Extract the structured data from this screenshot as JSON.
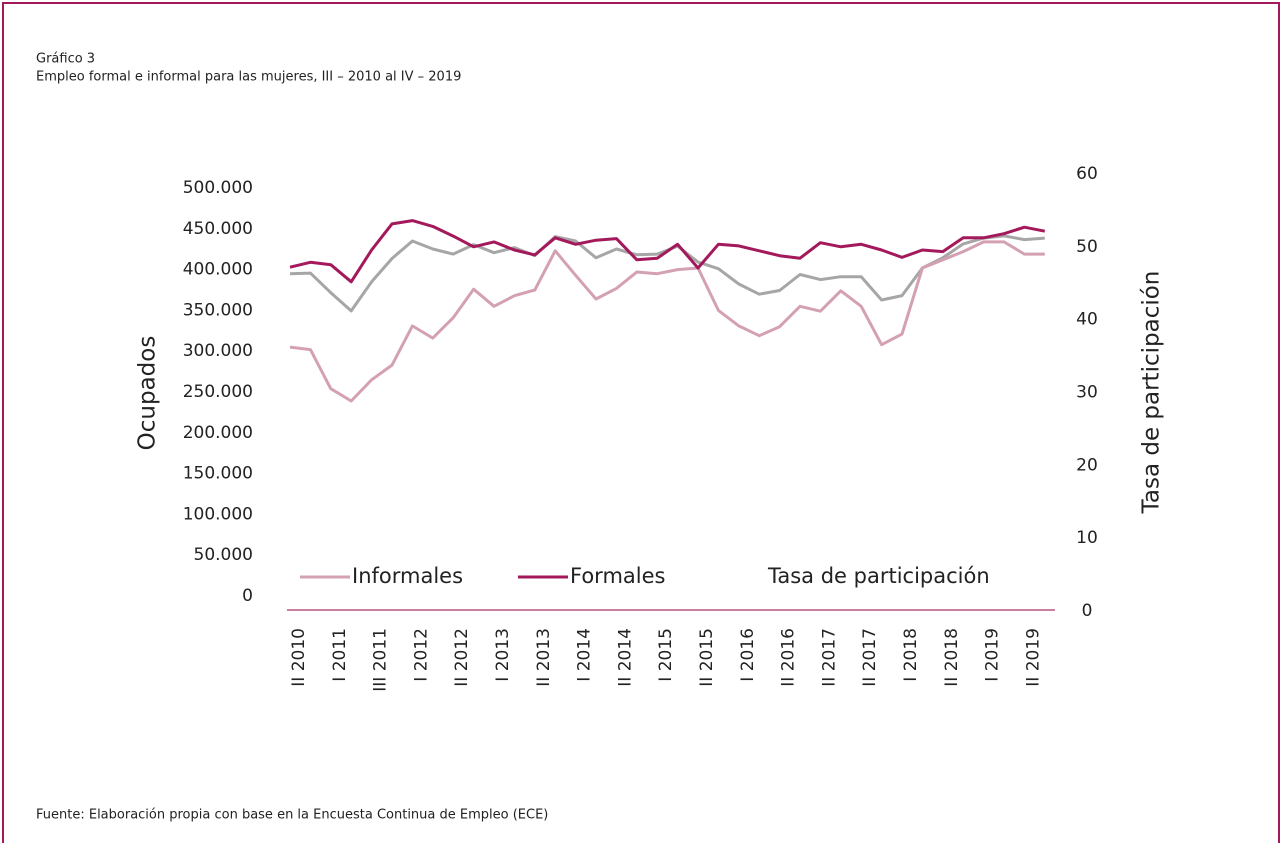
{
  "chart_data": {
    "type": "line",
    "label": "Gráfico 3",
    "title": "Empleo formal e informal para las mujeres, III – 2010 al IV – 2019",
    "source": "Fuente: Elaboración propia con base en la Encuesta Continua de Empleo (ECE)",
    "ylabel": "Ocupados",
    "y2label": "Tasa de participación",
    "categories": [
      "II 2010",
      null,
      "I 2011",
      null,
      "III 2011",
      null,
      "I 2012",
      null,
      "II 2012",
      null,
      "I 2013",
      null,
      "II 2013",
      null,
      "I 2014",
      null,
      "II 2014",
      null,
      "I 2015",
      null,
      "II 2015",
      null,
      "I 2016",
      null,
      "II 2016",
      null,
      "II 2017",
      null,
      "II 2017",
      null,
      "I 2018",
      null,
      "II 2018",
      null,
      "I 2019",
      null,
      "II 2019",
      null
    ],
    "series": [
      {
        "name": "Informales",
        "color": "#d4a0b4",
        "values": [
          305000,
          302000,
          254000,
          239000,
          265000,
          283000,
          331000,
          316000,
          341000,
          376000,
          355000,
          368000,
          375000,
          423000,
          393000,
          364000,
          377000,
          397000,
          395000,
          400000,
          402000,
          350000,
          331000,
          319000,
          330000,
          355000,
          349000,
          374000,
          355000,
          308000,
          321000,
          402000,
          412000,
          422000,
          434000,
          434000,
          419000,
          419000
        ]
      },
      {
        "name": "Formales",
        "color": "#a3195b",
        "values": [
          403000,
          409000,
          406000,
          385000,
          424000,
          456000,
          460000,
          453000,
          441000,
          428000,
          434000,
          424000,
          418000,
          439000,
          431000,
          436000,
          438000,
          412000,
          414000,
          431000,
          402000,
          431000,
          429000,
          423000,
          417000,
          414000,
          433000,
          428000,
          431000,
          424000,
          415000,
          424000,
          422000,
          439000,
          439000,
          444000,
          452000,
          447000
        ]
      },
      {
        "name": "Tasa de participación",
        "color": "#a6a6a6",
        "axis": "y2",
        "values": [
          46.3,
          46.4,
          43.7,
          41.2,
          45.2,
          48.4,
          50.8,
          49.7,
          49.0,
          50.3,
          49.2,
          49.9,
          48.8,
          51.4,
          50.8,
          48.5,
          49.7,
          48.9,
          49.0,
          50.1,
          47.9,
          47.0,
          44.9,
          43.5,
          44.0,
          46.2,
          45.5,
          45.9,
          45.9,
          42.7,
          43.3,
          47.1,
          48.5,
          50.4,
          51.2,
          51.5,
          51.0,
          51.2
        ]
      }
    ],
    "ylim": [
      0,
      500000
    ],
    "yticks": [
      0,
      {
        "value": 50000,
        "label": "50.000"
      },
      {
        "value": 100000,
        "label": "100.000"
      },
      {
        "value": 150000,
        "label": "150.000"
      },
      {
        "value": 200000,
        "label": "200.000"
      },
      {
        "value": 250000,
        "label": "250.000"
      },
      {
        "value": 300000,
        "label": "300.000"
      },
      {
        "value": 350000,
        "label": "350.000"
      },
      {
        "value": 400000,
        "label": "400.000"
      },
      {
        "value": 450000,
        "label": "450.000"
      },
      {
        "value": 500000,
        "label": "500.000"
      }
    ],
    "y2lim": [
      0,
      60
    ],
    "y2ticks": [
      0,
      10,
      20,
      30,
      40,
      50,
      60
    ],
    "axis_color": "#c9809e"
  }
}
